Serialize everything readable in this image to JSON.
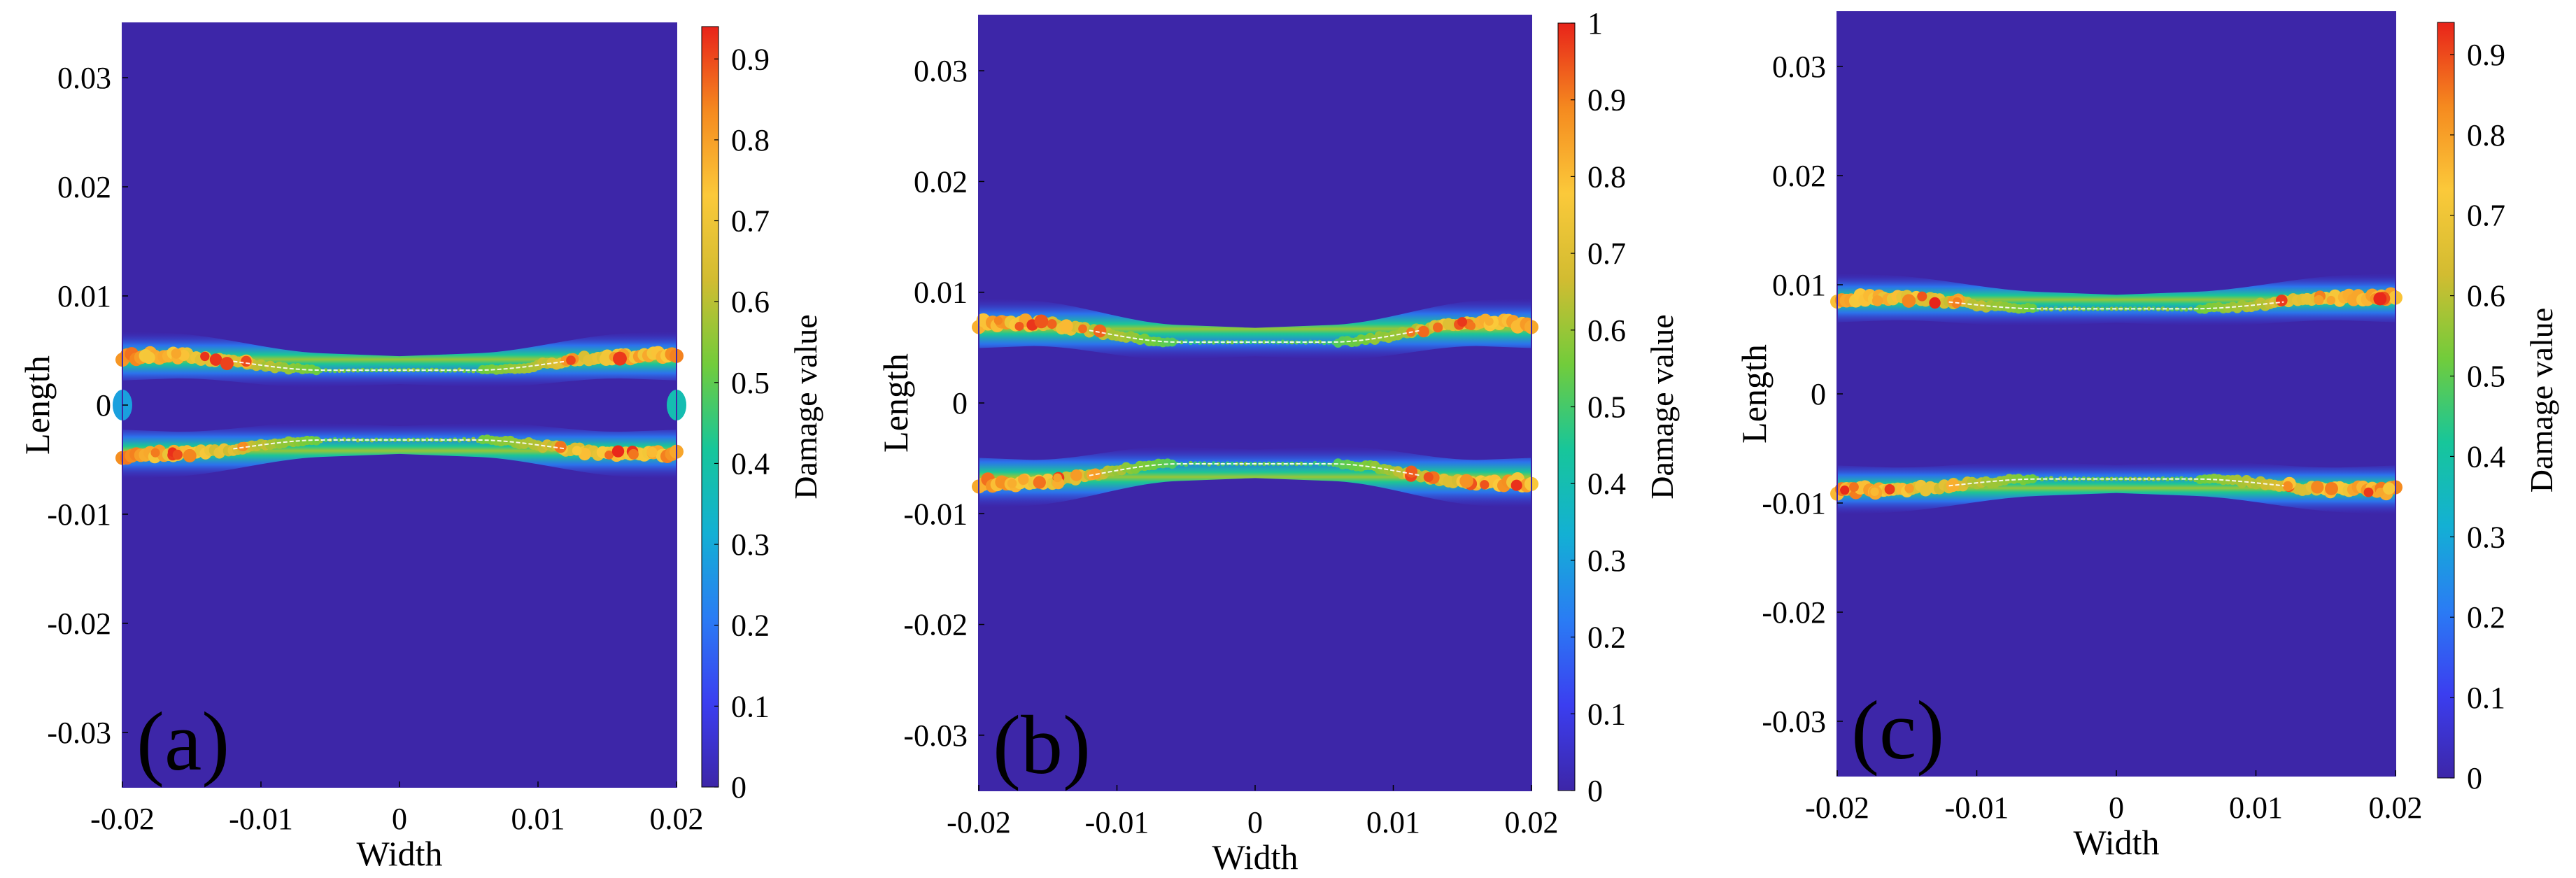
{
  "figure": {
    "colorbar_colors": [
      "#3d26a8",
      "#3b3ef0",
      "#2a7cf4",
      "#13b0d4",
      "#17c69a",
      "#72cc3b",
      "#d2bc31",
      "#fbc93a",
      "#f58a1f",
      "#e8231a"
    ]
  },
  "chart_data": [
    {
      "type": "heatmap",
      "panel_label": "(a)",
      "xlabel": "Width",
      "ylabel": "Length",
      "colorbar_label": "Damage value",
      "xlim": [
        -0.02,
        0.02
      ],
      "ylim": [
        -0.035,
        0.035
      ],
      "xticks": [
        "-0.02",
        "-0.01",
        "0",
        "0.01",
        "0.02"
      ],
      "xtick_values": [
        -0.02,
        -0.01,
        0,
        0.01,
        0.02
      ],
      "yticks": [
        "0.03",
        "0.02",
        "0.01",
        "0",
        "-0.01",
        "-0.02",
        "-0.03"
      ],
      "ytick_values": [
        0.03,
        0.02,
        0.01,
        0,
        -0.01,
        -0.02,
        -0.03
      ],
      "colorbar_range": [
        0,
        0.94
      ],
      "colorbar_ticks": [
        "0.9",
        "0.8",
        "0.7",
        "0.6",
        "0.5",
        "0.4",
        "0.3",
        "0.2",
        "0.1",
        "0"
      ],
      "colorbar_tick_values": [
        0.9,
        0.8,
        0.7,
        0.6,
        0.5,
        0.4,
        0.3,
        0.2,
        0.1,
        0
      ],
      "background_damage": 0,
      "damage_bands": [
        {
          "edge_y": 0.0045,
          "center_y": 0.0032,
          "max_damage": 0.94
        },
        {
          "edge_y": -0.0045,
          "center_y": -0.0032,
          "max_damage": 0.94
        }
      ],
      "edge_spots": [
        {
          "x": 0.02,
          "y": 0,
          "damage": 0.4
        },
        {
          "x": -0.02,
          "y": 0,
          "damage": 0.3
        }
      ]
    },
    {
      "type": "heatmap",
      "panel_label": "(b)",
      "xlabel": "Width",
      "ylabel": "Length",
      "colorbar_label": "Damage value",
      "xlim": [
        -0.02,
        0.02
      ],
      "ylim": [
        -0.035,
        0.035
      ],
      "xticks": [
        "-0.02",
        "-0.01",
        "0",
        "0.01",
        "0.02"
      ],
      "xtick_values": [
        -0.02,
        -0.01,
        0,
        0.01,
        0.02
      ],
      "yticks": [
        "0.03",
        "0.02",
        "0.01",
        "0",
        "-0.01",
        "-0.02",
        "-0.03"
      ],
      "ytick_values": [
        0.03,
        0.02,
        0.01,
        0,
        -0.01,
        -0.02,
        -0.03
      ],
      "colorbar_range": [
        0,
        1
      ],
      "colorbar_ticks": [
        "1",
        "0.9",
        "0.8",
        "0.7",
        "0.6",
        "0.5",
        "0.4",
        "0.3",
        "0.2",
        "0.1",
        "0"
      ],
      "colorbar_tick_values": [
        1,
        0.9,
        0.8,
        0.7,
        0.6,
        0.5,
        0.4,
        0.3,
        0.2,
        0.1,
        0
      ],
      "background_damage": 0,
      "damage_bands": [
        {
          "edge_y": 0.0072,
          "center_y": 0.0055,
          "max_damage": 1.0
        },
        {
          "edge_y": -0.0072,
          "center_y": -0.0055,
          "max_damage": 1.0
        }
      ],
      "edge_spots": []
    },
    {
      "type": "heatmap",
      "panel_label": "(c)",
      "xlabel": "Width",
      "ylabel": "Length",
      "colorbar_label": "Damage value",
      "xlim": [
        -0.02,
        0.02
      ],
      "ylim": [
        -0.035,
        0.035
      ],
      "xticks": [
        "-0.02",
        "-0.01",
        "0",
        "0.01",
        "0.02"
      ],
      "xtick_values": [
        -0.02,
        -0.01,
        0,
        0.01,
        0.02
      ],
      "yticks": [
        "0.03",
        "0.02",
        "0.01",
        "0",
        "-0.01",
        "-0.02",
        "-0.03"
      ],
      "ytick_values": [
        0.03,
        0.02,
        0.01,
        0,
        -0.01,
        -0.02,
        -0.03
      ],
      "colorbar_range": [
        0,
        0.94
      ],
      "colorbar_ticks": [
        "0.9",
        "0.8",
        "0.7",
        "0.6",
        "0.5",
        "0.4",
        "0.3",
        "0.2",
        "0.1",
        "0"
      ],
      "colorbar_tick_values": [
        0.9,
        0.8,
        0.7,
        0.6,
        0.5,
        0.4,
        0.3,
        0.2,
        0.1,
        0
      ],
      "background_damage": 0,
      "damage_bands": [
        {
          "edge_y": 0.0088,
          "center_y": 0.0078,
          "max_damage": 0.94
        },
        {
          "edge_y": -0.0088,
          "center_y": -0.0078,
          "max_damage": 0.94
        }
      ],
      "edge_spots": []
    }
  ]
}
